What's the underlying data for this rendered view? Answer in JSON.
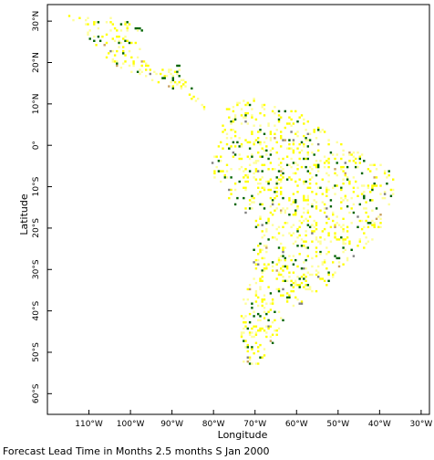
{
  "map": {
    "xlabel": "Longitude",
    "ylabel": "Latitude",
    "caption": "Forecast Lead Time in Months 2.5 months S Jan 2000",
    "lon_range": [
      -120,
      -28
    ],
    "lat_range": [
      -65,
      34
    ],
    "colors": {
      "frame": "#000000",
      "yellow": "#ffff00",
      "light_yellow": "#ffff99",
      "green": "#006400",
      "gray": "#808080",
      "tan": "#c8a060"
    },
    "lon_ticks": [
      {
        "value": -110,
        "label": "110°W"
      },
      {
        "value": -100,
        "label": "100°W"
      },
      {
        "value": -90,
        "label": "90°W"
      },
      {
        "value": -80,
        "label": "80°W"
      },
      {
        "value": -70,
        "label": "70°W"
      },
      {
        "value": -60,
        "label": "60°W"
      },
      {
        "value": -50,
        "label": "50°W"
      },
      {
        "value": -40,
        "label": "40°W"
      },
      {
        "value": -30,
        "label": "30°W"
      }
    ],
    "lat_ticks": [
      {
        "value": 30,
        "label": "30°N"
      },
      {
        "value": 20,
        "label": "20°N"
      },
      {
        "value": 10,
        "label": "10°N"
      },
      {
        "value": 0,
        "label": "0°"
      },
      {
        "value": -10,
        "label": "10°S"
      },
      {
        "value": -20,
        "label": "20°S"
      },
      {
        "value": -30,
        "label": "30°S"
      },
      {
        "value": -40,
        "label": "40°S"
      },
      {
        "value": -50,
        "label": "50°S"
      },
      {
        "value": -60,
        "label": "60°S"
      }
    ]
  }
}
